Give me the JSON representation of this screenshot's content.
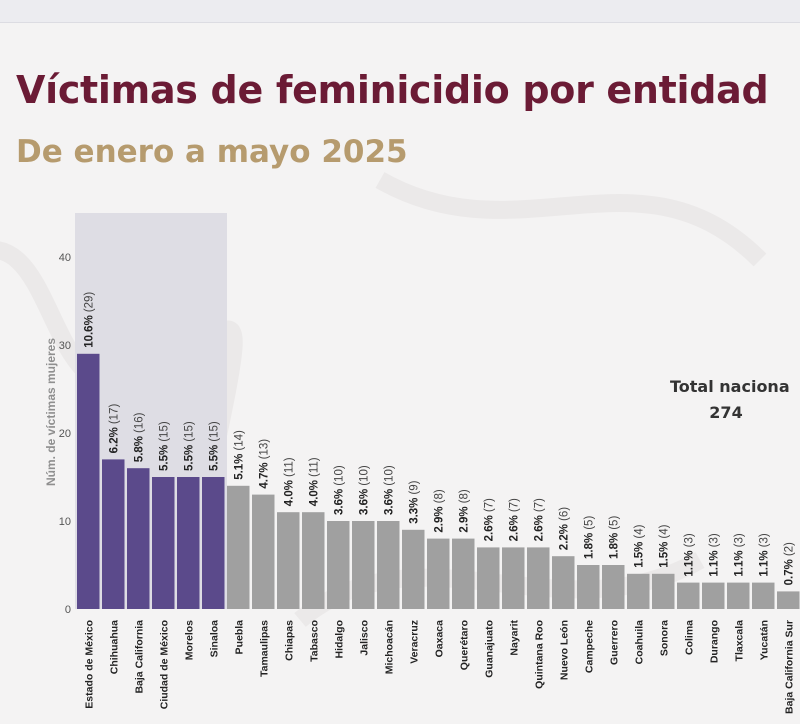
{
  "title": "Víctimas de feminicidio por entidad",
  "subtitle": "De enero a mayo 2025",
  "total": {
    "label": "Total naciona",
    "value": "274"
  },
  "colors": {
    "title": "#6b1b35",
    "subtitle": "#b69b6e",
    "highlight_bar": "#5b4a8b",
    "bar": "#a0a0a0",
    "highlight_band": "#dedde4"
  },
  "chart_data": {
    "type": "bar",
    "ylabel": "Núm. de víctimas mujeres",
    "ylim": [
      0,
      45
    ],
    "yticks": [
      0,
      10,
      20,
      30,
      40
    ],
    "grid": false,
    "highlighted_count": 6,
    "categories": [
      "Estado de México",
      "Chihuahua",
      "Baja California",
      "Ciudad de México",
      "Morelos",
      "Sinaloa",
      "Puebla",
      "Tamaulipas",
      "Chiapas",
      "Tabasco",
      "Hidalgo",
      "Jalisco",
      "Michoacán",
      "Veracruz",
      "Oaxaca",
      "Querétaro",
      "Guanajuato",
      "Nayarit",
      "Quintana Roo",
      "Nuevo León",
      "Campeche",
      "Guerrero",
      "Coahuila",
      "Sonora",
      "Colima",
      "Durango",
      "Tlaxcala",
      "Yucatán",
      "Baja California Sur"
    ],
    "values": [
      29,
      17,
      16,
      15,
      15,
      15,
      14,
      13,
      11,
      11,
      10,
      10,
      10,
      9,
      8,
      8,
      7,
      7,
      7,
      6,
      5,
      5,
      4,
      4,
      3,
      3,
      3,
      3,
      2
    ],
    "percent_labels": [
      "10.6%",
      "6.2%",
      "5.8%",
      "5.5%",
      "5.5%",
      "5.5%",
      "5.1%",
      "4.7%",
      "4.0%",
      "4.0%",
      "3.6%",
      "3.6%",
      "3.6%",
      "3.3%",
      "2.9%",
      "2.9%",
      "2.6%",
      "2.6%",
      "2.6%",
      "2.2%",
      "1.8%",
      "1.8%",
      "1.5%",
      "1.5%",
      "1.1%",
      "1.1%",
      "1.1%",
      "1.1%",
      "0.7%"
    ],
    "count_labels": [
      "(29)",
      "(17)",
      "(16)",
      "(15)",
      "(15)",
      "(15)",
      "(14)",
      "(13)",
      "(11)",
      "(11)",
      "(10)",
      "(10)",
      "(10)",
      "(9)",
      "(8)",
      "(8)",
      "(7)",
      "(7)",
      "(7)",
      "(6)",
      "(5)",
      "(5)",
      "(4)",
      "(4)",
      "(3)",
      "(3)",
      "(3)",
      "(3)",
      "(2)"
    ]
  }
}
